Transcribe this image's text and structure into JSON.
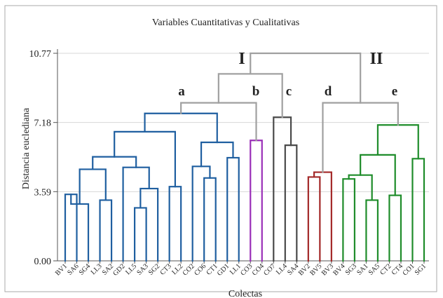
{
  "chart_data": {
    "type": "dendrogram",
    "title": "Variables Cuantitativas y Cualitativas",
    "xlabel": "Colectas",
    "ylabel": "Distancia euclediana",
    "ylim": [
      0,
      10.77
    ],
    "yticks": [
      "0.00",
      "3.59",
      "7.18",
      "10.77"
    ],
    "leaves": [
      "BV1",
      "SA6",
      "SG4",
      "LL3",
      "SA2",
      "GD2",
      "LL5",
      "SA3",
      "SG2",
      "CT3",
      "LL2",
      "CO2",
      "CO6",
      "CT1",
      "GD1",
      "LL1",
      "CO3",
      "CO4",
      "CO7",
      "LL4",
      "SA4",
      "BV2",
      "BV5",
      "BV3",
      "BV4",
      "SG3",
      "SA1",
      "SA5",
      "CT2",
      "CT4",
      "CO1",
      "SG1"
    ],
    "group_labels": {
      "major": [
        "I",
        "II"
      ],
      "minor": [
        "a",
        "b",
        "c",
        "d",
        "e"
      ]
    },
    "colors": {
      "a": "#1f5fa0",
      "b": "#9a2fb8",
      "c": "#4a4a4a",
      "d": "#a32828",
      "e": "#1e8c2a",
      "root": "#a0a0a0"
    },
    "merges": [
      {
        "a": "BV1",
        "b": "SA6",
        "h": 3.45,
        "color": "a"
      },
      {
        "a": "SA6",
        "b": "SG4",
        "h": 2.95,
        "color": "a"
      },
      {
        "a": "LL3",
        "b": "SA2",
        "h": 3.15,
        "color": "a"
      },
      {
        "a": "BV1",
        "b": "LL3",
        "h": 4.75,
        "color": "a"
      },
      {
        "a": "LL5",
        "b": "SA3",
        "h": 2.75,
        "color": "a"
      },
      {
        "a": "SA3",
        "b": "SG2",
        "h": 3.75,
        "color": "a"
      },
      {
        "a": "GD2",
        "b": "LL5",
        "h": 4.85,
        "color": "a"
      },
      {
        "a": "BV1",
        "b": "GD2",
        "h": 5.4,
        "color": "a"
      },
      {
        "a": "CT3",
        "b": "LL2",
        "h": 3.85,
        "color": "a"
      },
      {
        "a": "BV1",
        "b": "CT3",
        "h": 6.7,
        "color": "a"
      },
      {
        "a": "CO6",
        "b": "CT1",
        "h": 4.3,
        "color": "a"
      },
      {
        "a": "CO2",
        "b": "CO6",
        "h": 4.9,
        "color": "a"
      },
      {
        "a": "GD1",
        "b": "LL1",
        "h": 5.35,
        "color": "a"
      },
      {
        "a": "CO2",
        "b": "GD1",
        "h": 6.15,
        "color": "a"
      },
      {
        "a": "BV1",
        "b": "CO2",
        "h": 7.65,
        "color": "a"
      },
      {
        "a": "CO3",
        "b": "CO4",
        "h": 6.25,
        "color": "b"
      },
      {
        "a": "LL4",
        "b": "SA4",
        "h": 6.0,
        "color": "c"
      },
      {
        "a": "CO7",
        "b": "LL4",
        "h": 7.45,
        "color": "c"
      },
      {
        "a": "BV1",
        "b": "CO3",
        "h": 8.2,
        "color": "root"
      },
      {
        "a": "BV1",
        "b": "CO7",
        "h": 9.7,
        "color": "root"
      },
      {
        "a": "BV2",
        "b": "BV5",
        "h": 4.35,
        "color": "d"
      },
      {
        "a": "BV5",
        "b": "BV3",
        "h": 4.6,
        "color": "d"
      },
      {
        "a": "BV4",
        "b": "SG3",
        "h": 4.25,
        "color": "e"
      },
      {
        "a": "SA1",
        "b": "SA5",
        "h": 3.15,
        "color": "e"
      },
      {
        "a": "SG3",
        "b": "SA1",
        "h": 4.45,
        "color": "e"
      },
      {
        "a": "CT2",
        "b": "CT4",
        "h": 3.4,
        "color": "e"
      },
      {
        "a": "BV4",
        "b": "CT2",
        "h": 5.5,
        "color": "e"
      },
      {
        "a": "CO1",
        "b": "SG1",
        "h": 5.3,
        "color": "e"
      },
      {
        "a": "BV4",
        "b": "CO1",
        "h": 7.05,
        "color": "e"
      },
      {
        "a": "BV2",
        "b": "BV4",
        "h": 8.2,
        "color": "root"
      },
      {
        "a": "BV1",
        "b": "BV2",
        "h": 10.77,
        "color": "root"
      }
    ]
  }
}
